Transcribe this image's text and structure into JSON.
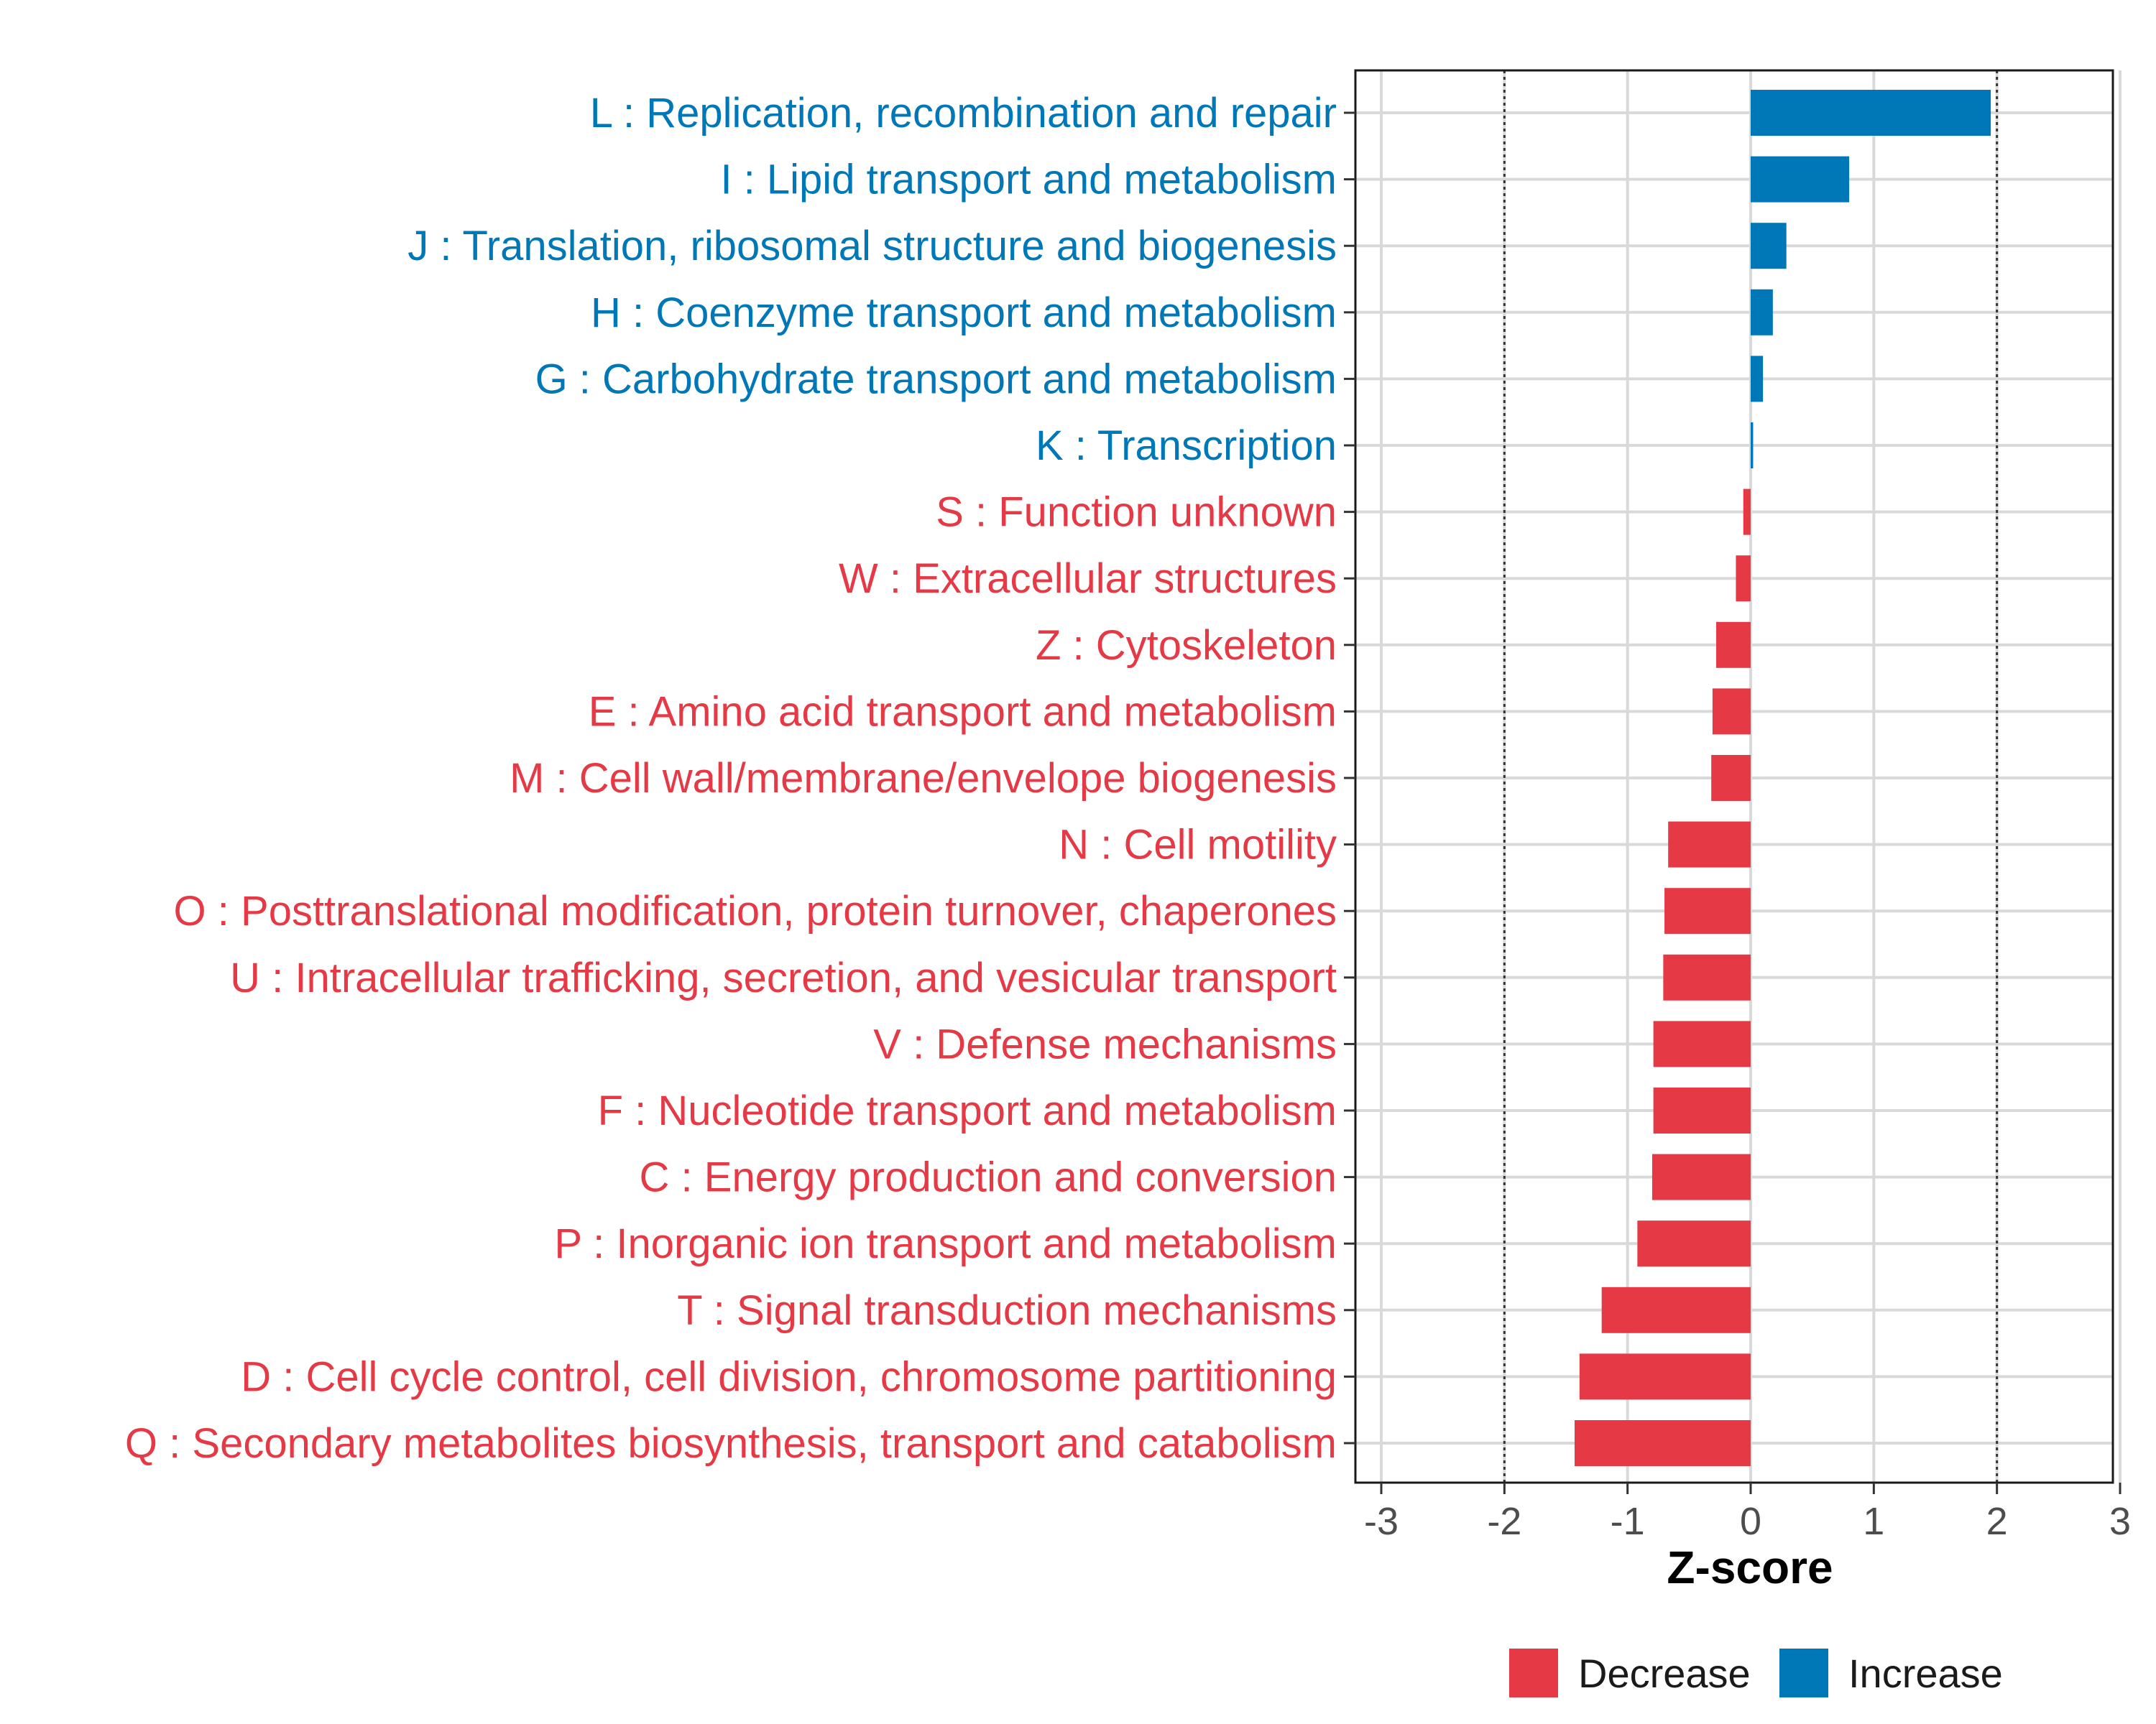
{
  "chart_data": {
    "type": "bar",
    "orientation": "horizontal",
    "title": "",
    "xlabel": "Z-score",
    "ylabel": "",
    "xlim": [
      -3.2,
      3.2
    ],
    "xticks": [
      -3,
      -2,
      -1,
      0,
      1,
      2,
      3
    ],
    "xtick_labels": [
      "-3",
      "-2",
      "-1",
      "0",
      "1",
      "2",
      "3"
    ],
    "reference_lines": [
      -2,
      2
    ],
    "grid": true,
    "categories": [
      "L : Replication, recombination and repair",
      "I : Lipid transport and metabolism",
      "J : Translation, ribosomal structure and biogenesis",
      "H : Coenzyme transport and metabolism",
      "G : Carbohydrate transport and metabolism",
      "K : Transcription",
      "S : Function unknown",
      "W : Extracellular structures",
      "Z : Cytoskeleton",
      "E : Amino acid transport and metabolism",
      "M : Cell wall/membrane/envelope biogenesis",
      "N : Cell motility",
      "O : Posttranslational modification, protein turnover, chaperones",
      "U : Intracellular trafficking, secretion, and vesicular transport",
      "V : Defense mechanisms",
      "F : Nucleotide transport and metabolism",
      "C : Energy production and conversion",
      "P : Inorganic ion transport and metabolism",
      "T : Signal transduction mechanisms",
      "D : Cell cycle control, cell division, chromosome partitioning",
      "Q : Secondary metabolites biosynthesis, transport and catabolism"
    ],
    "values": [
      1.95,
      0.8,
      0.29,
      0.18,
      0.1,
      0.02,
      -0.06,
      -0.12,
      -0.28,
      -0.31,
      -0.32,
      -0.67,
      -0.7,
      -0.71,
      -0.79,
      -0.79,
      -0.8,
      -0.92,
      -1.21,
      -1.39,
      -1.43
    ],
    "groups": [
      "Increase",
      "Increase",
      "Increase",
      "Increase",
      "Increase",
      "Increase",
      "Decrease",
      "Decrease",
      "Decrease",
      "Decrease",
      "Decrease",
      "Decrease",
      "Decrease",
      "Decrease",
      "Decrease",
      "Decrease",
      "Decrease",
      "Decrease",
      "Decrease",
      "Decrease",
      "Decrease"
    ],
    "legend": {
      "position": "bottom",
      "items": [
        {
          "label": "Decrease",
          "color": "#E63946"
        },
        {
          "label": "Increase",
          "color": "#0077B6"
        }
      ]
    },
    "colors": {
      "Decrease": "#E63946",
      "Increase": "#0077B6"
    }
  }
}
